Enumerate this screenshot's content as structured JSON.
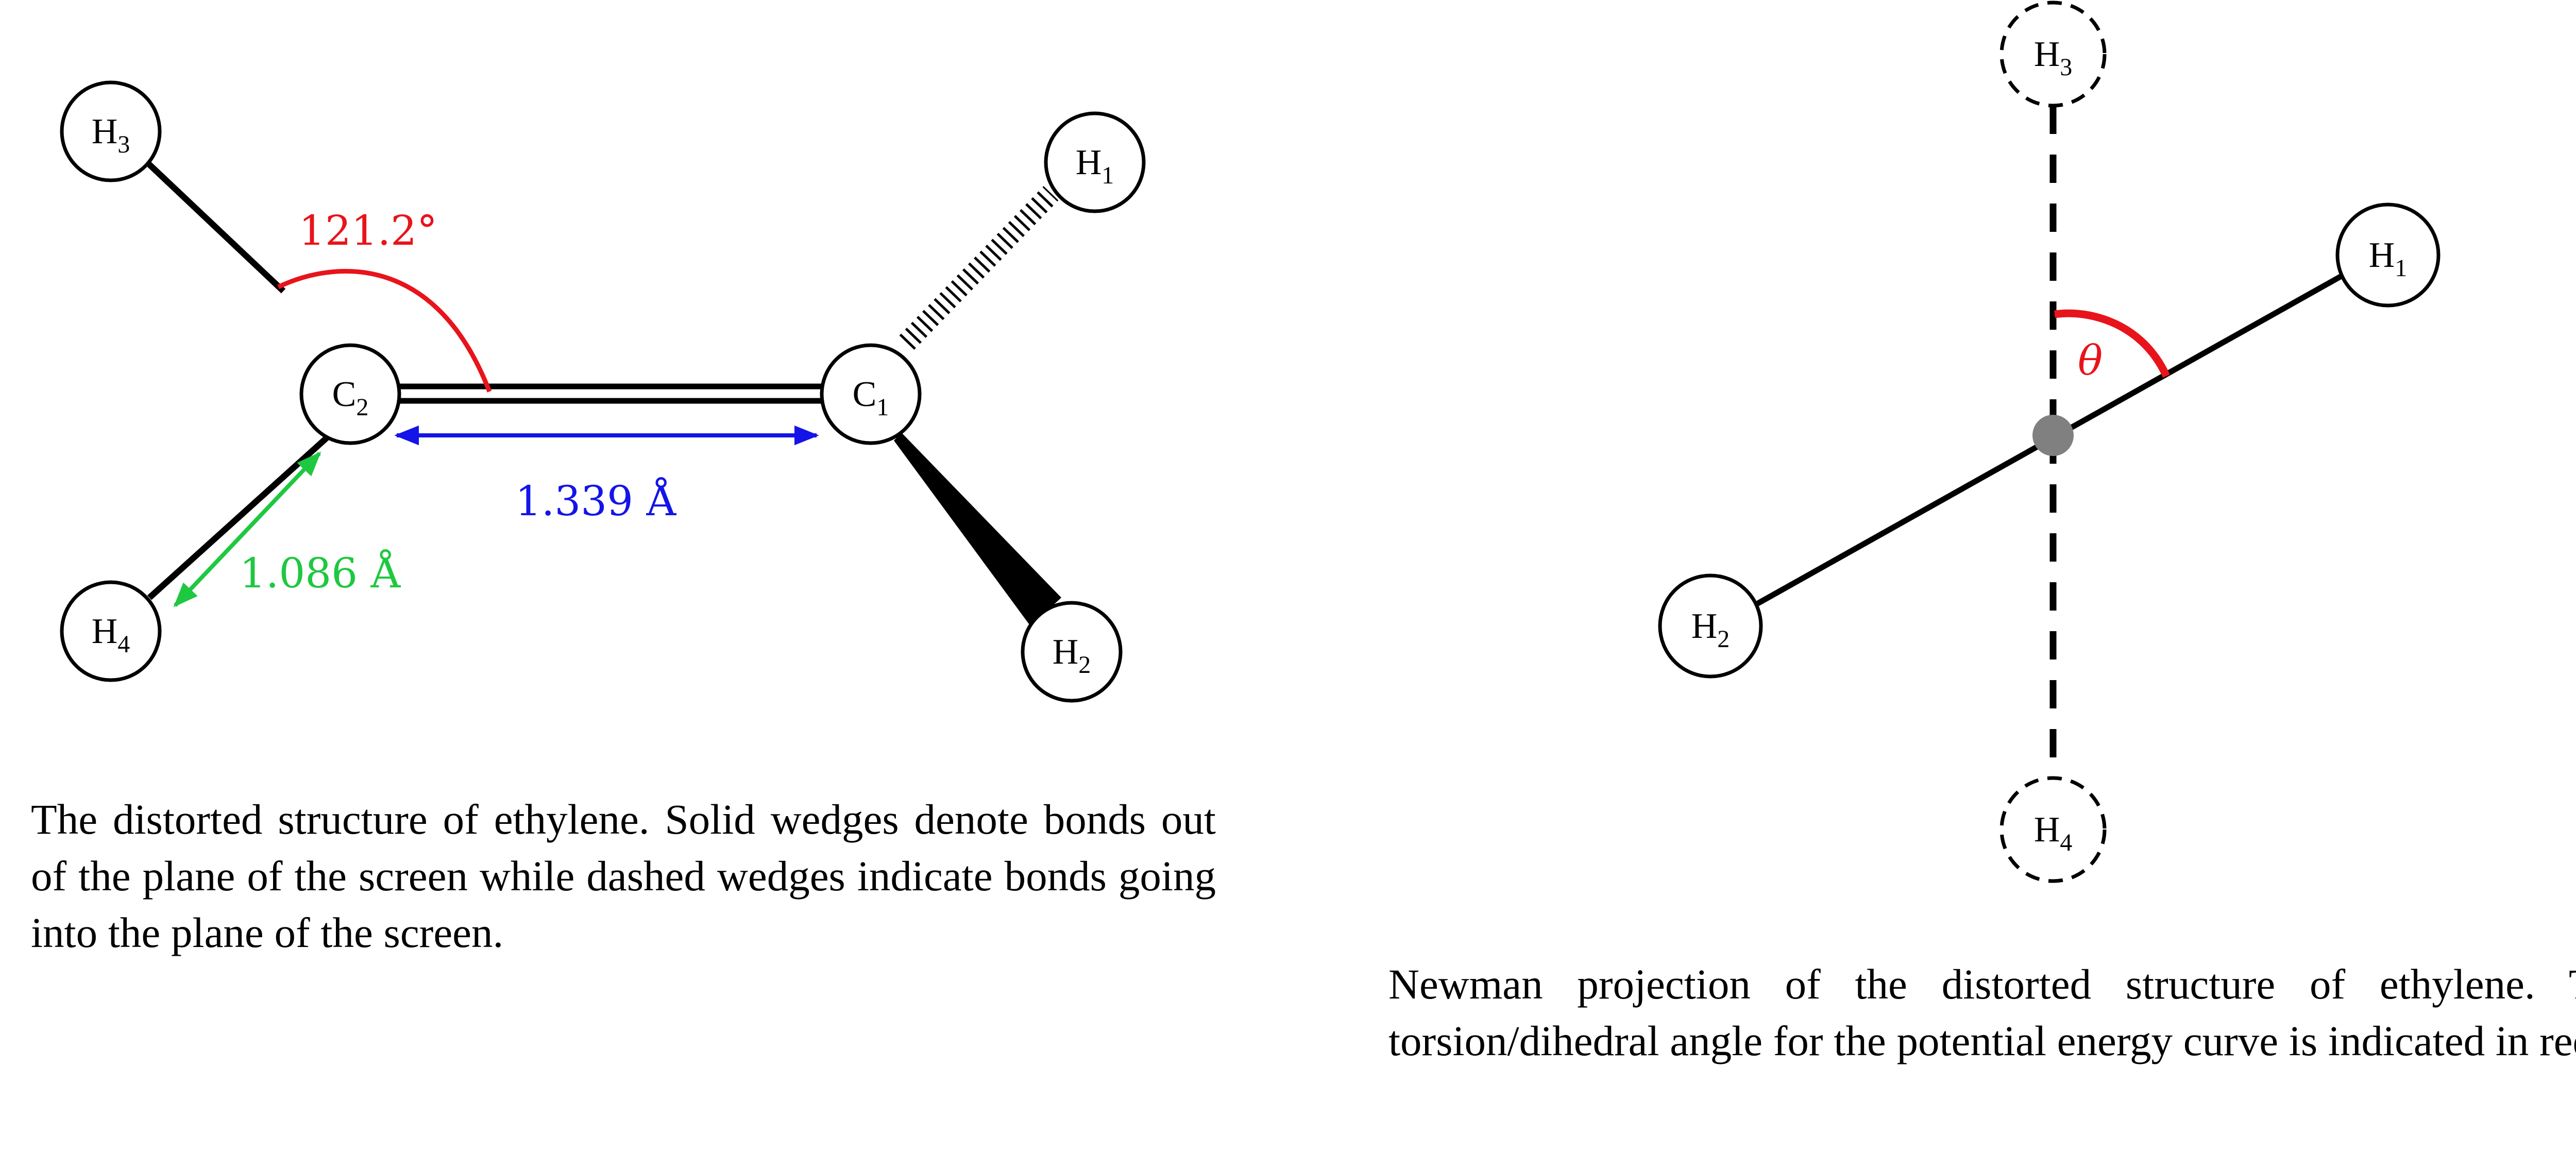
{
  "ethylene_structure": {
    "atoms": {
      "c1": {
        "symbol": "C",
        "index": "1"
      },
      "c2": {
        "symbol": "C",
        "index": "2"
      },
      "h1": {
        "symbol": "H",
        "index": "1"
      },
      "h2": {
        "symbol": "H",
        "index": "2"
      },
      "h3": {
        "symbol": "H",
        "index": "3"
      },
      "h4": {
        "symbol": "H",
        "index": "4"
      }
    },
    "angle_label": "121.2°",
    "cc_bond_length": "1.339 Å",
    "ch_bond_length": "1.086 Å",
    "colors": {
      "angle": "#e8141b",
      "cc_length": "#1414e8",
      "ch_length": "#1ec840",
      "bond": "#000000"
    },
    "caption": "The distorted structure of ethylene. Solid wedges denote bonds out of the plane of the screen while dashed wedges indicate bonds going into the plane of the screen."
  },
  "newman_projection": {
    "atoms": {
      "h1": {
        "symbol": "H",
        "index": "1"
      },
      "h2": {
        "symbol": "H",
        "index": "2"
      },
      "h3": {
        "symbol": "H",
        "index": "3"
      },
      "h4": {
        "symbol": "H",
        "index": "4"
      }
    },
    "angle_label": "θ",
    "colors": {
      "angle": "#e8141b",
      "center_atom": "#808080"
    },
    "caption": "Newman projection of the distorted structure of ethylene. The torsion/dihedral angle for the potential energy curve is indicated in red."
  }
}
